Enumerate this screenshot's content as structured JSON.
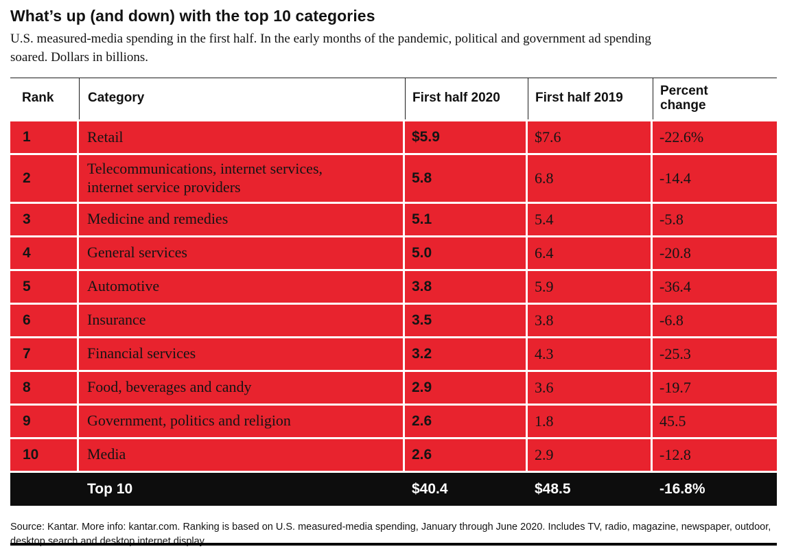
{
  "header": {
    "title": "What’s up (and down) with the top 10 categories",
    "subtitle": "U.S. measured-media spending in the first half. In the early months of the pandemic, political and government ad spending soared. Dollars in billions."
  },
  "table": {
    "columns": {
      "rank": "Rank",
      "category": "Category",
      "h2020": "First half 2020",
      "h2019": "First half 2019",
      "change": "Percent change"
    },
    "rows": [
      {
        "rank": "1",
        "category": "Retail",
        "h2020": "$5.9",
        "h2019": "$7.6",
        "change": "-22.6%"
      },
      {
        "rank": "2",
        "category": "Telecommunications, internet services, internet service providers",
        "h2020": "5.8",
        "h2019": "6.8",
        "change": "-14.4"
      },
      {
        "rank": "3",
        "category": "Medicine and remedies",
        "h2020": "5.1",
        "h2019": "5.4",
        "change": "-5.8"
      },
      {
        "rank": "4",
        "category": "General services",
        "h2020": "5.0",
        "h2019": "6.4",
        "change": "-20.8"
      },
      {
        "rank": "5",
        "category": "Automotive",
        "h2020": "3.8",
        "h2019": "5.9",
        "change": "-36.4"
      },
      {
        "rank": "6",
        "category": "Insurance",
        "h2020": "3.5",
        "h2019": "3.8",
        "change": "-6.8"
      },
      {
        "rank": "7",
        "category": "Financial services",
        "h2020": "3.2",
        "h2019": "4.3",
        "change": "-25.3"
      },
      {
        "rank": "8",
        "category": "Food, beverages and candy",
        "h2020": "2.9",
        "h2019": "3.6",
        "change": "-19.7"
      },
      {
        "rank": "9",
        "category": "Government, politics and religion",
        "h2020": "2.6",
        "h2019": "1.8",
        "change": "45.5"
      },
      {
        "rank": "10",
        "category": "Media",
        "h2020": "2.6",
        "h2019": "2.9",
        "change": "-12.8"
      }
    ],
    "total": {
      "rank": "",
      "category": "Top 10",
      "h2020": "$40.4",
      "h2019": "$48.5",
      "change": "-16.8%"
    }
  },
  "footer": {
    "source": "Source: Kantar. More info: kantar.com. Ranking is based on U.S. measured-media spending, January through June 2020. Includes TV, radio, magazine, newspaper, outdoor, desktop search and desktop internet display."
  },
  "colors": {
    "row_red": "#E8232E",
    "total_black": "#0D0D0D",
    "rule_black": "#000000"
  },
  "chart_data": {
    "type": "table",
    "title": "What’s up (and down) with the top 10 categories",
    "subtitle": "U.S. measured-media spending in the first half. In the early months of the pandemic, political and government ad spending soared. Dollars in billions.",
    "units": "Dollars in billions",
    "columns": [
      "Rank",
      "Category",
      "First half 2020",
      "First half 2019",
      "Percent change"
    ],
    "rows": [
      [
        1,
        "Retail",
        5.9,
        7.6,
        -22.6
      ],
      [
        2,
        "Telecommunications, internet services, internet service providers",
        5.8,
        6.8,
        -14.4
      ],
      [
        3,
        "Medicine and remedies",
        5.1,
        5.4,
        -5.8
      ],
      [
        4,
        "General services",
        5.0,
        6.4,
        -20.8
      ],
      [
        5,
        "Automotive",
        3.8,
        5.9,
        -36.4
      ],
      [
        6,
        "Insurance",
        3.5,
        3.8,
        -6.8
      ],
      [
        7,
        "Financial services",
        3.2,
        4.3,
        -25.3
      ],
      [
        8,
        "Food, beverages and candy",
        2.9,
        3.6,
        -19.7
      ],
      [
        9,
        "Government, politics and religion",
        2.6,
        1.8,
        45.5
      ],
      [
        10,
        "Media",
        2.6,
        2.9,
        -12.8
      ]
    ],
    "total_row": [
      "",
      "Top 10",
      40.4,
      48.5,
      -16.8
    ],
    "source": "Source: Kantar. More info: kantar.com. Ranking is based on U.S. measured-media spending, January through June 2020. Includes TV, radio, magazine, newspaper, outdoor, desktop search and desktop internet display."
  }
}
